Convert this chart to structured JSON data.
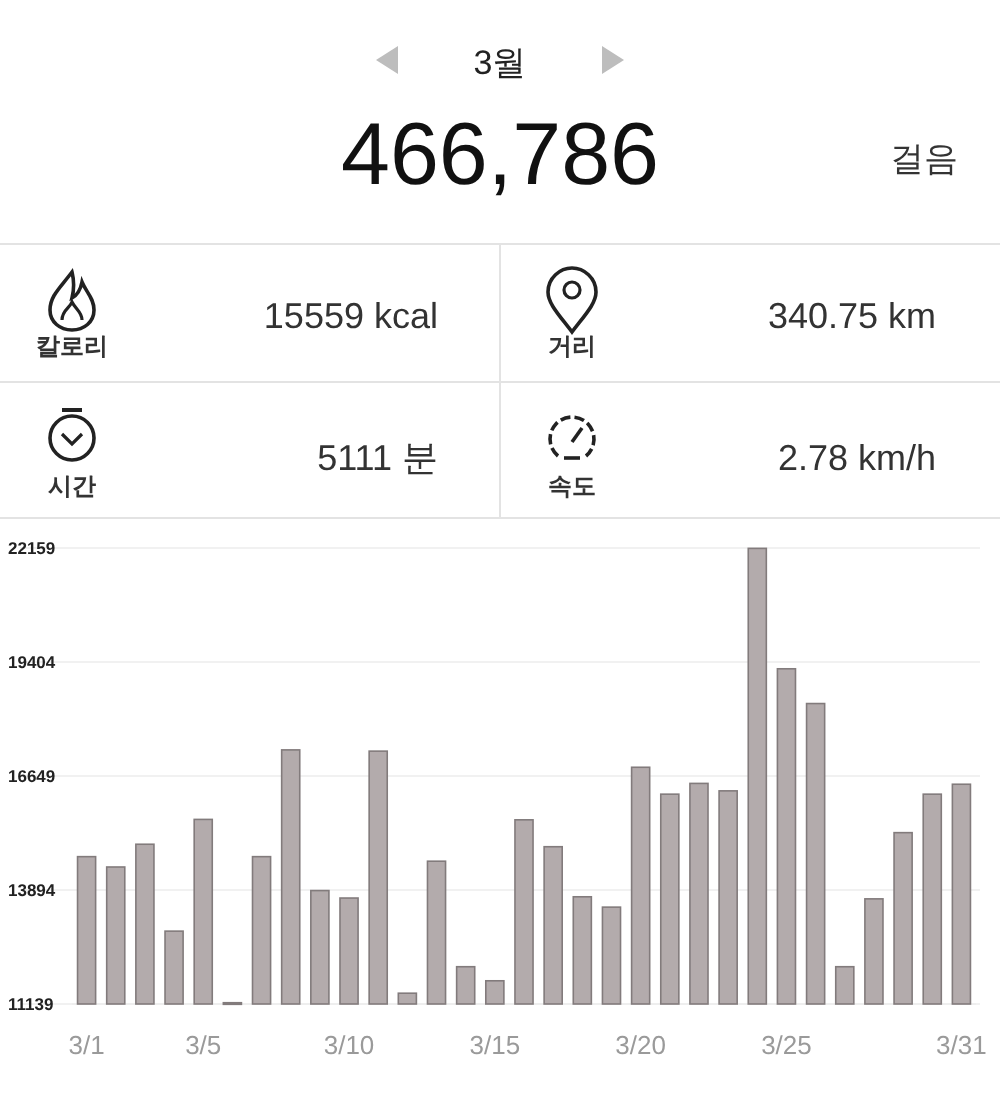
{
  "chart_data": {
    "type": "bar",
    "title": "3월",
    "annotations": [
      "466,786",
      "걸음",
      "칼로리",
      "15559 kcal",
      "거리",
      "340.75 km",
      "시간",
      "5111 분",
      "속도",
      "2.78 km/h"
    ],
    "categories": [
      "3/1",
      null,
      null,
      null,
      "3/5",
      null,
      null,
      null,
      null,
      "3/10",
      null,
      null,
      null,
      null,
      "3/15",
      null,
      null,
      null,
      null,
      "3/20",
      null,
      null,
      null,
      null,
      "3/25",
      null,
      null,
      null,
      null,
      null,
      "3/31"
    ],
    "values": [
      14700,
      14450,
      15000,
      12900,
      15600,
      11170,
      14700,
      17280,
      13880,
      13700,
      17250,
      11400,
      14590,
      12040,
      11700,
      15590,
      14940,
      13730,
      13480,
      16860,
      16210,
      16470,
      16290,
      22150,
      19240,
      18400,
      12040,
      13680,
      15280,
      16210,
      16450
    ],
    "color": "#b3abac",
    "ylim": [
      11139,
      22159
    ],
    "yticks": [
      11139,
      13894,
      16649,
      19404,
      22159
    ],
    "grid": "y"
  }
}
